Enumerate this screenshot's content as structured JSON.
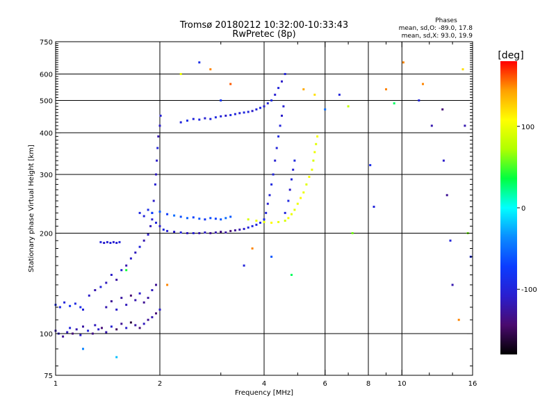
{
  "header": {
    "title": "Tromsø 20180212 10:32:00-10:33:43",
    "subtitle": "RwPretec (8p)"
  },
  "phases_box": {
    "heading": "Phases",
    "line_o": "mean, sd,O: -89.0, 17.8",
    "line_x": "mean, sd,X:  93.0, 19.9"
  },
  "colorbar": {
    "unit_label": "[deg]",
    "ticks": [
      {
        "value": 100,
        "label": "100"
      },
      {
        "value": 0,
        "label": "0"
      },
      {
        "value": -100,
        "label": "-100"
      }
    ],
    "range": [
      -180,
      180
    ],
    "colors": [
      "#000000",
      "#4a0a6e",
      "#2a1ecf",
      "#0b3cff",
      "#0a8cff",
      "#00ffff",
      "#00ff40",
      "#b0ff00",
      "#ffff00",
      "#ffa000",
      "#ff0000"
    ]
  },
  "chart_data": {
    "type": "scatter",
    "title": "Tromsø 20180212 10:32:00-10:33:43",
    "subtitle": "RwPretec (8p)",
    "xlabel": "Frequency [MHz]",
    "ylabel": "Stationary phase Virtual Height [km]",
    "xscale": "log",
    "yscale": "log",
    "xlim": [
      1,
      16
    ],
    "ylim": [
      75,
      750
    ],
    "xticks": [
      {
        "value": 1,
        "label": "1"
      },
      {
        "value": 2,
        "label": "2"
      },
      {
        "value": 4,
        "label": "4"
      },
      {
        "value": 6,
        "label": "6"
      },
      {
        "value": 8,
        "label": "8"
      },
      {
        "value": 10,
        "label": "10"
      },
      {
        "value": 16,
        "label": "16"
      }
    ],
    "xminor": [
      3,
      5,
      7,
      9,
      12,
      14
    ],
    "xgrid": [
      2,
      4,
      6,
      8,
      10
    ],
    "yticks": [
      {
        "value": 75,
        "label": "75"
      },
      {
        "value": 100,
        "label": "100"
      },
      {
        "value": 200,
        "label": "200"
      },
      {
        "value": 300,
        "label": "300"
      },
      {
        "value": 400,
        "label": "400"
      },
      {
        "value": 500,
        "label": "500"
      },
      {
        "value": 600,
        "label": "600"
      },
      {
        "value": 750,
        "label": "750"
      }
    ],
    "ygrid": [
      100,
      200,
      300,
      400,
      500,
      600
    ],
    "color_metric": "phase [deg]",
    "color_range": [
      -180,
      180
    ],
    "grid": true,
    "series": [
      {
        "points": [
          [
            1.0,
            102,
            -120
          ],
          [
            1.02,
            100,
            -110
          ],
          [
            1.05,
            98,
            -130
          ],
          [
            1.08,
            101,
            -115
          ],
          [
            1.1,
            104,
            -100
          ],
          [
            1.12,
            100,
            -140
          ],
          [
            1.15,
            103,
            -120
          ],
          [
            1.18,
            99,
            -110
          ],
          [
            1.2,
            105,
            -125
          ],
          [
            1.24,
            102,
            -100
          ],
          [
            1.28,
            100,
            -135
          ],
          [
            1.3,
            106,
            -115
          ],
          [
            1.33,
            103,
            -110
          ],
          [
            1.36,
            104,
            -140
          ],
          [
            1.4,
            101,
            -120
          ],
          [
            1.45,
            105,
            -105
          ],
          [
            1.5,
            103,
            -150
          ],
          [
            1.55,
            107,
            -130
          ],
          [
            1.6,
            104,
            -110
          ],
          [
            1.65,
            108,
            -160
          ],
          [
            1.7,
            106,
            -125
          ],
          [
            1.75,
            104,
            -140
          ],
          [
            1.8,
            107,
            -115
          ],
          [
            1.85,
            110,
            -130
          ],
          [
            1.9,
            112,
            -120
          ],
          [
            1.95,
            115,
            -140
          ],
          [
            2.0,
            118,
            -110
          ]
        ]
      },
      {
        "points": [
          [
            1.0,
            122,
            -90
          ],
          [
            1.03,
            120,
            -95
          ],
          [
            1.06,
            124,
            -100
          ],
          [
            1.1,
            121,
            -85
          ],
          [
            1.14,
            123,
            -95
          ],
          [
            1.18,
            120,
            -90
          ],
          [
            1.2,
            118,
            -100
          ]
        ]
      },
      {
        "points": [
          [
            1.25,
            130,
            -110
          ],
          [
            1.3,
            135,
            -120
          ],
          [
            1.35,
            138,
            -100
          ],
          [
            1.4,
            142,
            -115
          ],
          [
            1.45,
            150,
            -110
          ],
          [
            1.5,
            145,
            -125
          ],
          [
            1.55,
            155,
            -105
          ],
          [
            1.6,
            160,
            -120
          ],
          [
            1.65,
            168,
            -110
          ],
          [
            1.7,
            175,
            -115
          ],
          [
            1.75,
            182,
            -100
          ],
          [
            1.8,
            190,
            -120
          ],
          [
            1.85,
            198,
            -110
          ],
          [
            1.88,
            210,
            -115
          ],
          [
            1.9,
            230,
            -100
          ],
          [
            1.92,
            250,
            -110
          ],
          [
            1.94,
            280,
            -105
          ],
          [
            1.95,
            300,
            -115
          ],
          [
            1.96,
            330,
            -110
          ],
          [
            1.97,
            360,
            -100
          ],
          [
            1.98,
            390,
            -120
          ],
          [
            2.0,
            420,
            -110
          ],
          [
            2.01,
            450,
            -105
          ]
        ]
      },
      {
        "points": [
          [
            1.4,
            120,
            -120
          ],
          [
            1.45,
            125,
            -130
          ],
          [
            1.5,
            118,
            -110
          ],
          [
            1.55,
            128,
            -125
          ],
          [
            1.6,
            122,
            -115
          ],
          [
            1.65,
            130,
            -140
          ],
          [
            1.7,
            126,
            -120
          ],
          [
            1.75,
            132,
            -110
          ],
          [
            1.8,
            124,
            -130
          ],
          [
            1.85,
            128,
            -125
          ],
          [
            1.9,
            135,
            -115
          ],
          [
            1.95,
            140,
            -130
          ]
        ]
      },
      {
        "points": [
          [
            1.35,
            188,
            -100
          ],
          [
            1.38,
            187,
            -110
          ],
          [
            1.41,
            188,
            -105
          ],
          [
            1.44,
            187,
            -100
          ],
          [
            1.47,
            188,
            -108
          ],
          [
            1.5,
            187,
            -104
          ],
          [
            1.53,
            188,
            -100
          ]
        ]
      },
      {
        "points": [
          [
            1.75,
            230,
            -95
          ],
          [
            1.8,
            225,
            -100
          ],
          [
            1.85,
            235,
            -90
          ],
          [
            1.9,
            220,
            -105
          ],
          [
            1.95,
            215,
            -100
          ],
          [
            2.0,
            210,
            -110
          ],
          [
            2.05,
            205,
            -95
          ],
          [
            2.1,
            203,
            -105
          ],
          [
            2.2,
            202,
            -110
          ],
          [
            2.3,
            201,
            -100
          ],
          [
            2.4,
            200,
            -115
          ],
          [
            2.5,
            200,
            -105
          ],
          [
            2.6,
            200,
            -120
          ],
          [
            2.7,
            201,
            -110
          ],
          [
            2.8,
            200,
            -130
          ],
          [
            2.9,
            201,
            -120
          ],
          [
            3.0,
            202,
            -135
          ],
          [
            3.1,
            201,
            -125
          ],
          [
            3.2,
            203,
            -140
          ],
          [
            3.3,
            204,
            -130
          ],
          [
            3.4,
            205,
            -120
          ],
          [
            3.5,
            206,
            -110
          ],
          [
            3.6,
            208,
            -100
          ],
          [
            3.7,
            210,
            -95
          ],
          [
            3.8,
            212,
            -100
          ],
          [
            3.9,
            215,
            -90
          ],
          [
            4.0,
            220,
            -95
          ],
          [
            4.05,
            230,
            -100
          ],
          [
            4.1,
            245,
            -105
          ],
          [
            4.15,
            260,
            -100
          ],
          [
            4.2,
            280,
            -95
          ],
          [
            4.25,
            300,
            -100
          ],
          [
            4.3,
            330,
            -105
          ],
          [
            4.35,
            360,
            -100
          ],
          [
            4.4,
            390,
            -95
          ],
          [
            4.45,
            420,
            -100
          ],
          [
            4.5,
            450,
            -110
          ],
          [
            4.55,
            480,
            -105
          ]
        ]
      },
      {
        "points": [
          [
            1.9,
            230,
            -70
          ],
          [
            2.0,
            232,
            -60
          ],
          [
            2.1,
            228,
            -75
          ],
          [
            2.2,
            226,
            -50
          ],
          [
            2.3,
            224,
            -65
          ],
          [
            2.4,
            222,
            -55
          ],
          [
            2.5,
            223,
            -70
          ],
          [
            2.6,
            221,
            -60
          ],
          [
            2.7,
            220,
            -80
          ],
          [
            2.8,
            222,
            -65
          ],
          [
            2.9,
            221,
            -70
          ],
          [
            3.0,
            220,
            -60
          ],
          [
            3.1,
            222,
            -50
          ],
          [
            3.2,
            224,
            -60
          ]
        ]
      },
      {
        "points": [
          [
            2.3,
            430,
            -100
          ],
          [
            2.4,
            435,
            -90
          ],
          [
            2.5,
            440,
            -100
          ],
          [
            2.6,
            438,
            -95
          ],
          [
            2.7,
            442,
            -105
          ],
          [
            2.8,
            440,
            -100
          ],
          [
            2.9,
            445,
            -95
          ],
          [
            3.0,
            448,
            -100
          ],
          [
            3.1,
            450,
            -110
          ],
          [
            3.2,
            452,
            -95
          ],
          [
            3.3,
            455,
            -100
          ],
          [
            3.4,
            458,
            -105
          ],
          [
            3.5,
            460,
            -95
          ],
          [
            3.6,
            462,
            -100
          ],
          [
            3.7,
            465,
            -110
          ],
          [
            3.8,
            470,
            -100
          ],
          [
            3.9,
            475,
            -95
          ],
          [
            4.0,
            480,
            -105
          ],
          [
            4.1,
            490,
            -100
          ],
          [
            4.2,
            500,
            -95
          ],
          [
            4.3,
            520,
            -105
          ],
          [
            4.4,
            545,
            -100
          ],
          [
            4.5,
            570,
            -110
          ],
          [
            4.6,
            600,
            -100
          ]
        ]
      },
      {
        "points": [
          [
            3.6,
            220,
            90
          ],
          [
            3.8,
            218,
            100
          ],
          [
            4.0,
            216,
            95
          ],
          [
            4.2,
            215,
            110
          ],
          [
            4.4,
            216,
            100
          ],
          [
            4.6,
            218,
            90
          ],
          [
            4.7,
            222,
            105
          ],
          [
            4.8,
            228,
            100
          ],
          [
            4.9,
            235,
            95
          ],
          [
            5.0,
            245,
            100
          ],
          [
            5.1,
            255,
            110
          ],
          [
            5.2,
            265,
            100
          ],
          [
            5.3,
            280,
            95
          ],
          [
            5.4,
            295,
            105
          ],
          [
            5.5,
            310,
            100
          ],
          [
            5.55,
            330,
            90
          ],
          [
            5.6,
            350,
            100
          ],
          [
            5.65,
            370,
            95
          ],
          [
            5.7,
            390,
            105
          ]
        ]
      },
      {
        "points": [
          [
            4.6,
            230,
            -100
          ],
          [
            4.7,
            250,
            -95
          ],
          [
            4.75,
            270,
            -110
          ],
          [
            4.8,
            290,
            -100
          ],
          [
            4.85,
            310,
            -105
          ],
          [
            4.9,
            330,
            -95
          ]
        ]
      },
      {
        "points": [
          [
            1.2,
            90,
            -40
          ],
          [
            1.5,
            85,
            -20
          ],
          [
            1.6,
            155,
            40
          ],
          [
            2.1,
            140,
            150
          ],
          [
            2.3,
            600,
            100
          ],
          [
            2.6,
            650,
            -90
          ],
          [
            2.8,
            620,
            150
          ],
          [
            3.0,
            500,
            -80
          ],
          [
            3.2,
            560,
            160
          ],
          [
            3.5,
            160,
            -100
          ],
          [
            3.7,
            180,
            150
          ],
          [
            4.2,
            170,
            -60
          ],
          [
            4.8,
            150,
            30
          ],
          [
            5.2,
            540,
            140
          ],
          [
            5.6,
            520,
            120
          ],
          [
            6.0,
            470,
            -50
          ],
          [
            6.6,
            520,
            -100
          ],
          [
            7.0,
            480,
            80
          ],
          [
            7.2,
            200,
            60
          ],
          [
            8.1,
            320,
            -90
          ],
          [
            8.3,
            240,
            -100
          ],
          [
            9.0,
            540,
            150
          ],
          [
            9.5,
            490,
            30
          ],
          [
            10.1,
            650,
            150
          ],
          [
            11.2,
            500,
            -100
          ],
          [
            11.5,
            560,
            150
          ],
          [
            12.2,
            420,
            -120
          ],
          [
            13.1,
            470,
            -140
          ],
          [
            13.2,
            330,
            -110
          ],
          [
            13.5,
            260,
            -130
          ],
          [
            13.8,
            190,
            -100
          ],
          [
            14.0,
            140,
            -120
          ],
          [
            14.6,
            110,
            150
          ],
          [
            15.0,
            620,
            120
          ],
          [
            15.2,
            420,
            -120
          ],
          [
            15.5,
            200,
            60
          ],
          [
            15.8,
            170,
            -90
          ]
        ]
      }
    ]
  }
}
